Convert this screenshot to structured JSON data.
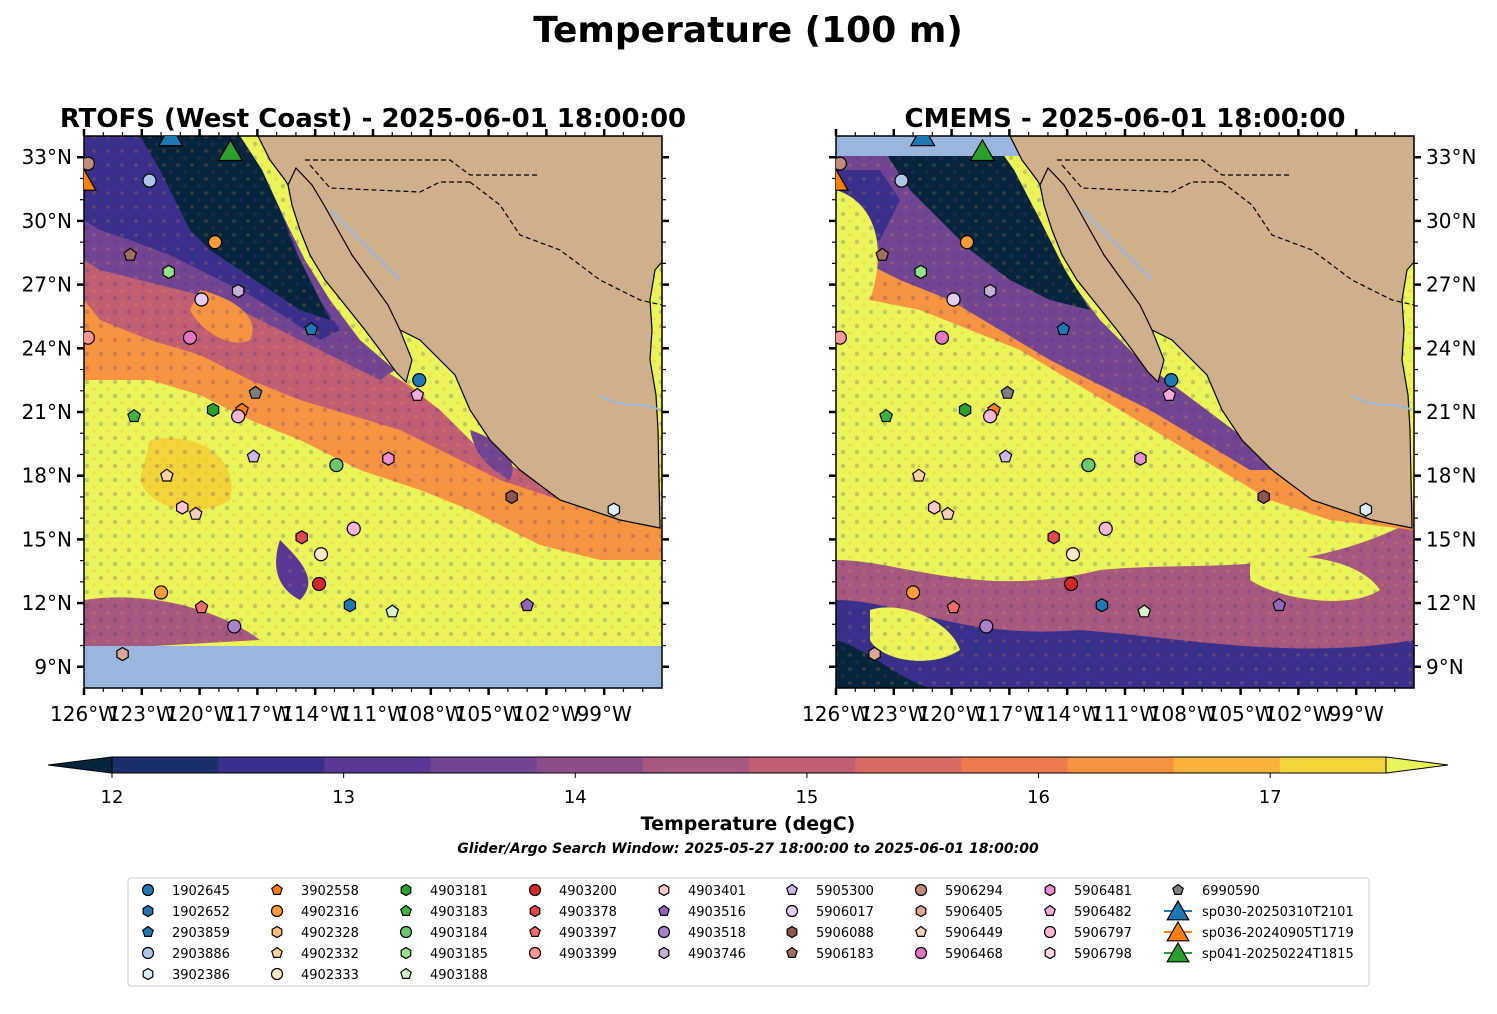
{
  "figure_title": "Temperature (100 m)",
  "chart_data": [
    {
      "type": "heatmap",
      "title": "RTOFS (West Coast) - 2025-06-01 18:00:00",
      "model": "RTOFS (West Coast)",
      "datetime": "2025-06-01 18:00:00",
      "xlim": [
        -126,
        -96
      ],
      "ylim": [
        8,
        34
      ],
      "x_ticks": [
        "126°W",
        "123°W",
        "120°W",
        "117°W",
        "114°W",
        "111°W",
        "108°W",
        "105°W",
        "102°W",
        "99°W"
      ],
      "y_ticks": [
        "9°N",
        "12°N",
        "15°N",
        "18°N",
        "21°N",
        "24°N",
        "27°N",
        "30°N",
        "33°N"
      ],
      "y_tick_side": "left",
      "no_data_south_of_lat": 10.1
    },
    {
      "type": "heatmap",
      "title": "CMEMS - 2025-06-01 18:00:00",
      "model": "CMEMS",
      "datetime": "2025-06-01 18:00:00",
      "xlim": [
        -126,
        -96
      ],
      "ylim": [
        8,
        34
      ],
      "x_ticks": [
        "126°W",
        "123°W",
        "120°W",
        "117°W",
        "114°W",
        "111°W",
        "108°W",
        "105°W",
        "102°W",
        "99°W"
      ],
      "y_ticks": [
        "9°N",
        "12°N",
        "15°N",
        "18°N",
        "21°N",
        "24°N",
        "27°N",
        "30°N",
        "33°N"
      ],
      "y_tick_side": "right"
    }
  ],
  "colorbar": {
    "label": "Temperature (degC)",
    "min": 12,
    "max": 17.5,
    "step": 0.5,
    "extend": "both",
    "ticks": [
      "12",
      "13",
      "14",
      "15",
      "16",
      "17"
    ],
    "colors": [
      "#05253d",
      "#1c2f6b",
      "#3a2f8a",
      "#583895",
      "#714592",
      "#8c4e89",
      "#a6587f",
      "#c05f73",
      "#d86a63",
      "#ed7a4e",
      "#f79441",
      "#f9b33a",
      "#f2d33a",
      "#eaf55a"
    ]
  },
  "search_window": "Glider/Argo Search Window: 2025-05-27 18:00:00 to 2025-06-01 18:00:00",
  "legend": {
    "columns": [
      [
        {
          "label": "1902645",
          "marker": "circle",
          "color": "#1f77b4"
        },
        {
          "label": "1902652",
          "marker": "hexagon",
          "color": "#1f77b4"
        },
        {
          "label": "2903859",
          "marker": "pentagon",
          "color": "#1f77b4"
        },
        {
          "label": "2903886",
          "marker": "circle",
          "color": "#aec7e8"
        },
        {
          "label": "3902386",
          "marker": "hexagon",
          "color": "#d8eefa"
        }
      ],
      [
        {
          "label": "3902558",
          "marker": "pentagon",
          "color": "#ff7f0e"
        },
        {
          "label": "4902316",
          "marker": "circle",
          "color": "#ff9c3a"
        },
        {
          "label": "4902328",
          "marker": "hexagon",
          "color": "#ffbb78"
        },
        {
          "label": "4902332",
          "marker": "pentagon",
          "color": "#ffd2a0"
        },
        {
          "label": "4902333",
          "marker": "circle",
          "color": "#ffe8c8"
        }
      ],
      [
        {
          "label": "4903181",
          "marker": "hexagon",
          "color": "#2ca02c"
        },
        {
          "label": "4903183",
          "marker": "pentagon",
          "color": "#41b341"
        },
        {
          "label": "4903184",
          "marker": "circle",
          "color": "#6cc86c"
        },
        {
          "label": "4903185",
          "marker": "hexagon",
          "color": "#98df8a"
        },
        {
          "label": "4903188",
          "marker": "pentagon",
          "color": "#d4f5cc"
        }
      ],
      [
        {
          "label": "4903200",
          "marker": "circle",
          "color": "#d62728"
        },
        {
          "label": "4903378",
          "marker": "hexagon",
          "color": "#e0474a"
        },
        {
          "label": "4903397",
          "marker": "pentagon",
          "color": "#f26b6e"
        },
        {
          "label": "4903399",
          "marker": "circle",
          "color": "#ff9896"
        }
      ],
      [
        {
          "label": "4903401",
          "marker": "hexagon",
          "color": "#ffc8c8"
        },
        {
          "label": "4903516",
          "marker": "pentagon",
          "color": "#9467bd"
        },
        {
          "label": "4903518",
          "marker": "circle",
          "color": "#a982cc"
        },
        {
          "label": "4903746",
          "marker": "hexagon",
          "color": "#c5b0d5"
        }
      ],
      [
        {
          "label": "5905300",
          "marker": "pentagon",
          "color": "#cdb7e8"
        },
        {
          "label": "5906017",
          "marker": "circle",
          "color": "#e2cdf5"
        },
        {
          "label": "5906088",
          "marker": "hexagon",
          "color": "#8c564b"
        },
        {
          "label": "5906183",
          "marker": "pentagon",
          "color": "#a36d5f"
        }
      ],
      [
        {
          "label": "5906294",
          "marker": "circle",
          "color": "#c08b7c"
        },
        {
          "label": "5906405",
          "marker": "hexagon",
          "color": "#d9a899"
        },
        {
          "label": "5906449",
          "marker": "pentagon",
          "color": "#f7cdbc"
        },
        {
          "label": "5906468",
          "marker": "circle",
          "color": "#e377c2"
        }
      ],
      [
        {
          "label": "5906481",
          "marker": "hexagon",
          "color": "#ea8fcf"
        },
        {
          "label": "5906482",
          "marker": "pentagon",
          "color": "#f5aadc"
        },
        {
          "label": "5906797",
          "marker": "circle",
          "color": "#f7b6d2"
        },
        {
          "label": "5906798",
          "marker": "hexagon",
          "color": "#fbd5e8"
        }
      ],
      [
        {
          "label": "6990590",
          "marker": "pentagon",
          "color": "#7f7f7f"
        },
        {
          "label": "sp030-20250310T2101",
          "marker": "triangle",
          "color": "#1f77b4"
        },
        {
          "label": "sp036-20240905T1719",
          "marker": "triangle",
          "color": "#ff7f0e"
        },
        {
          "label": "sp041-20250224T1815",
          "marker": "triangle",
          "color": "#2ca02c"
        }
      ]
    ]
  },
  "floats": [
    {
      "lon": -125.8,
      "lat": 32.7,
      "marker": "circle",
      "color": "#c08b7c"
    },
    {
      "lon": -119.2,
      "lat": 29.0,
      "marker": "circle",
      "color": "#ff9c3a"
    },
    {
      "lon": -122.6,
      "lat": 31.9,
      "marker": "circle",
      "color": "#aec7e8"
    },
    {
      "lon": -123.6,
      "lat": 28.4,
      "marker": "pentagon",
      "color": "#a36d5f"
    },
    {
      "lon": -121.6,
      "lat": 27.6,
      "marker": "hexagon",
      "color": "#98df8a"
    },
    {
      "lon": -118.0,
      "lat": 26.7,
      "marker": "hexagon",
      "color": "#c5b0d5"
    },
    {
      "lon": -119.9,
      "lat": 26.3,
      "marker": "circle",
      "color": "#e2cdf5"
    },
    {
      "lon": -125.8,
      "lat": 24.5,
      "marker": "circle",
      "color": "#ff9896"
    },
    {
      "lon": -120.5,
      "lat": 24.5,
      "marker": "circle",
      "color": "#e377c2"
    },
    {
      "lon": -114.2,
      "lat": 24.9,
      "marker": "pentagon",
      "color": "#1f77b4"
    },
    {
      "lon": -108.6,
      "lat": 22.5,
      "marker": "circle",
      "color": "#1f77b4"
    },
    {
      "lon": -108.7,
      "lat": 21.8,
      "marker": "pentagon",
      "color": "#f5aadc"
    },
    {
      "lon": -117.1,
      "lat": 21.9,
      "marker": "pentagon",
      "color": "#7f7f7f"
    },
    {
      "lon": -119.3,
      "lat": 21.1,
      "marker": "hexagon",
      "color": "#2ca02c"
    },
    {
      "lon": -117.8,
      "lat": 21.1,
      "marker": "pentagon",
      "color": "#ff7f0e"
    },
    {
      "lon": -118.0,
      "lat": 20.8,
      "marker": "circle",
      "color": "#f7b6d2"
    },
    {
      "lon": -123.4,
      "lat": 20.8,
      "marker": "pentagon",
      "color": "#41b341"
    },
    {
      "lon": -117.2,
      "lat": 18.9,
      "marker": "pentagon",
      "color": "#cdb7e8"
    },
    {
      "lon": -112.9,
      "lat": 18.5,
      "marker": "circle",
      "color": "#6cc86c"
    },
    {
      "lon": -110.2,
      "lat": 18.8,
      "marker": "hexagon",
      "color": "#ea8fcf"
    },
    {
      "lon": -121.7,
      "lat": 18.0,
      "marker": "pentagon",
      "color": "#ffd2a0"
    },
    {
      "lon": -103.8,
      "lat": 17.0,
      "marker": "hexagon",
      "color": "#8c564b"
    },
    {
      "lon": -120.9,
      "lat": 16.5,
      "marker": "hexagon",
      "color": "#ffc8c8"
    },
    {
      "lon": -120.2,
      "lat": 16.2,
      "marker": "pentagon",
      "color": "#f7cdbc"
    },
    {
      "lon": -98.5,
      "lat": 16.4,
      "marker": "hexagon",
      "color": "#d8eefa"
    },
    {
      "lon": -112.0,
      "lat": 15.5,
      "marker": "circle",
      "color": "#f7b6d2"
    },
    {
      "lon": -114.7,
      "lat": 15.1,
      "marker": "hexagon",
      "color": "#e0474a"
    },
    {
      "lon": -113.7,
      "lat": 14.3,
      "marker": "circle",
      "color": "#ffe8c8"
    },
    {
      "lon": -113.8,
      "lat": 12.9,
      "marker": "circle",
      "color": "#d62728"
    },
    {
      "lon": -122.0,
      "lat": 12.5,
      "marker": "circle",
      "color": "#ff9c3a"
    },
    {
      "lon": -119.9,
      "lat": 11.8,
      "marker": "pentagon",
      "color": "#f26b6e"
    },
    {
      "lon": -112.2,
      "lat": 11.9,
      "marker": "hexagon",
      "color": "#1f77b4"
    },
    {
      "lon": -110.0,
      "lat": 11.6,
      "marker": "pentagon",
      "color": "#d4f5cc"
    },
    {
      "lon": -103.0,
      "lat": 11.9,
      "marker": "pentagon",
      "color": "#9467bd"
    },
    {
      "lon": -118.2,
      "lat": 10.9,
      "marker": "circle",
      "color": "#a982cc"
    },
    {
      "lon": -124.0,
      "lat": 9.6,
      "marker": "hexagon",
      "color": "#d9a899"
    },
    {
      "lon": -126.0,
      "lat": 31.9,
      "marker": "triangle",
      "color": "#ff7f0e"
    },
    {
      "lon": -121.5,
      "lat": 34.0,
      "marker": "triangle",
      "color": "#1f77b4"
    },
    {
      "lon": -118.4,
      "lat": 33.3,
      "marker": "triangle",
      "color": "#2ca02c"
    }
  ]
}
